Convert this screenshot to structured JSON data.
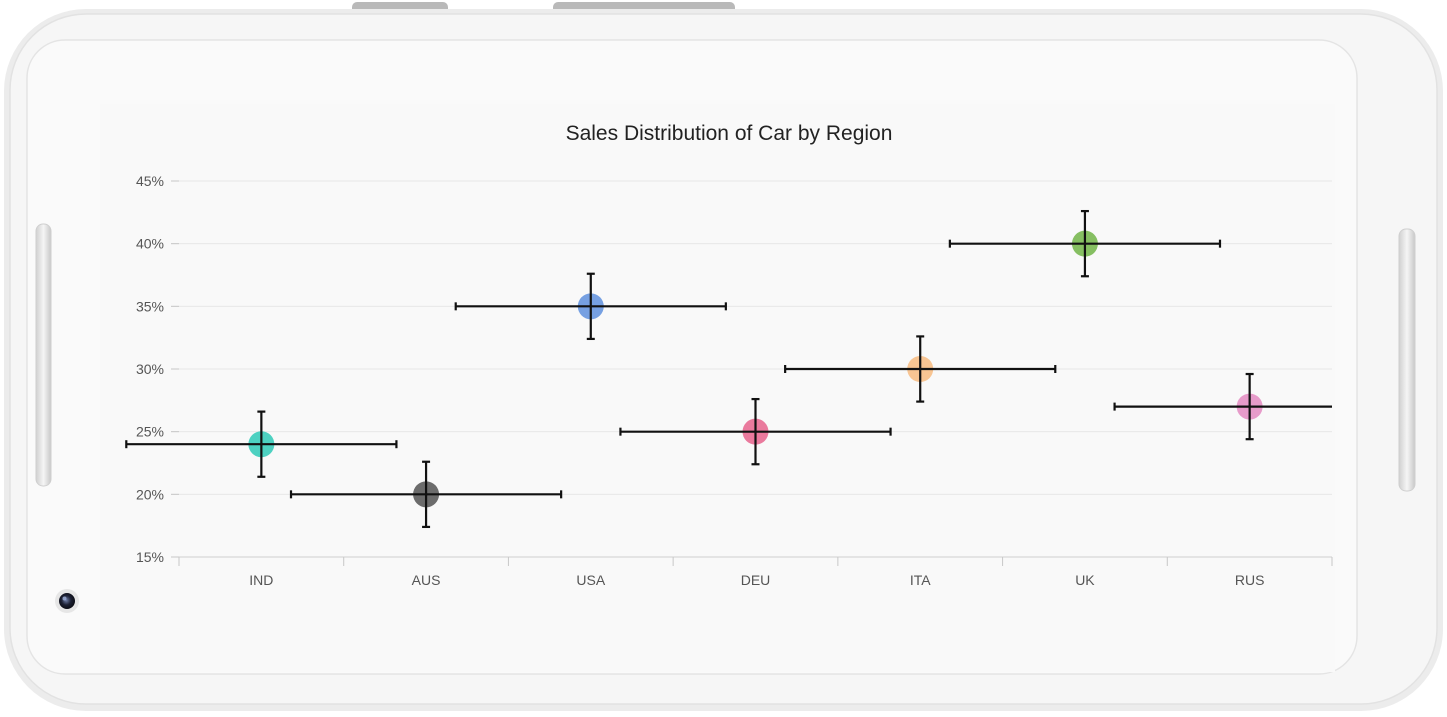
{
  "chart_data": {
    "type": "scatter",
    "title": "Sales Distribution of Car by Region",
    "xlabel": "",
    "ylabel": "",
    "categories": [
      "IND",
      "AUS",
      "USA",
      "DEU",
      "ITA",
      "UK",
      "RUS"
    ],
    "y_unit": "%",
    "ylim": [
      15,
      45
    ],
    "y_ticks": [
      15,
      20,
      25,
      30,
      35,
      40,
      45
    ],
    "y_tick_labels": [
      "15%",
      "20%",
      "25%",
      "30%",
      "35%",
      "40%",
      "45%"
    ],
    "grid": "horizontal",
    "series": [
      {
        "values": [
          24,
          20,
          35,
          25,
          30,
          40,
          27
        ],
        "colors": [
          "#3ecdbc",
          "#606060",
          "#6a98e0",
          "#e86f95",
          "#f7c08a",
          "#7cba55",
          "#e592c6"
        ],
        "y_error": [
          2.6,
          2.6,
          2.6,
          2.6,
          2.6,
          2.6,
          2.6
        ],
        "x_error_categories": [
          0.82,
          0.82,
          0.82,
          0.82,
          0.82,
          0.82,
          0.82
        ]
      }
    ]
  }
}
